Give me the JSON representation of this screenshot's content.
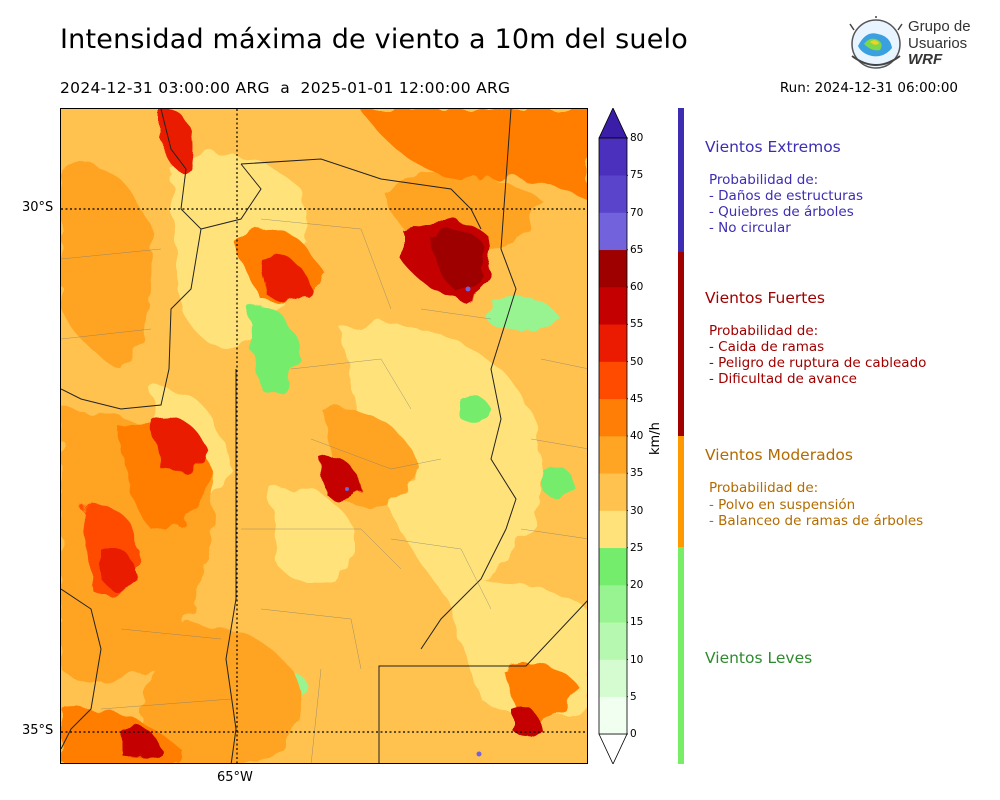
{
  "header": {
    "title": "Intensidad máxima de viento a 10m del suelo",
    "period": "2024-12-31 03:00:00 ARG  a  2025-01-01 12:00:00 ARG",
    "run": "Run: 2024-12-31 06:00:00"
  },
  "logo": {
    "line1": "Grupo de",
    "line2": "Usuarios",
    "line3": "WRF"
  },
  "map": {
    "lat_labels": [
      "30°S",
      "35°S"
    ],
    "lon_labels": [
      "65°W"
    ]
  },
  "colorbar": {
    "unit": "km/h",
    "ticks": [
      "0",
      "5",
      "10",
      "15",
      "20",
      "25",
      "30",
      "35",
      "40",
      "45",
      "50",
      "55",
      "60",
      "65",
      "70",
      "75",
      "80"
    ],
    "colors": [
      "#f0fff0",
      "#d4fcd0",
      "#b6f8b0",
      "#98f490",
      "#74ec6c",
      "#ffe37a",
      "#ffc24e",
      "#ffa423",
      "#ff7e06",
      "#ff4b00",
      "#ea1b00",
      "#c40000",
      "#9e0000",
      "#7262dc",
      "#5a44cc",
      "#4a30bc"
    ],
    "extend_top_color": "#3b1ea8",
    "extend_bottom_color": "#ffffff"
  },
  "categories": [
    {
      "title": "Vientos Extremos",
      "heading": "Probabilidad de:",
      "items": [
        "- Daños de estructuras",
        "- Quiebres de árboles",
        "- No circular"
      ],
      "color": "#3c2db3"
    },
    {
      "title": "Vientos Fuertes",
      "heading": "Probabilidad de:",
      "items": [
        "- Caida de ramas",
        "- Peligro de ruptura de cableado",
        "- Dificultad de avance"
      ],
      "color": "#a00000"
    },
    {
      "title": "Vientos Moderados",
      "heading": "Probabilidad de:",
      "items": [
        "- Polvo en suspensión",
        "- Balanceo de ramas de árboles"
      ],
      "color": "#b36b00"
    },
    {
      "title": "Vientos Leves",
      "heading": "",
      "items": [],
      "color": "#2e8b2e"
    }
  ],
  "bands": [
    {
      "name": "extremos",
      "color": "#3c2db3"
    },
    {
      "name": "fuertes",
      "color": "#a00000"
    },
    {
      "name": "moderados",
      "color": "#ff9900"
    },
    {
      "name": "leves",
      "color": "#77ee66"
    }
  ]
}
